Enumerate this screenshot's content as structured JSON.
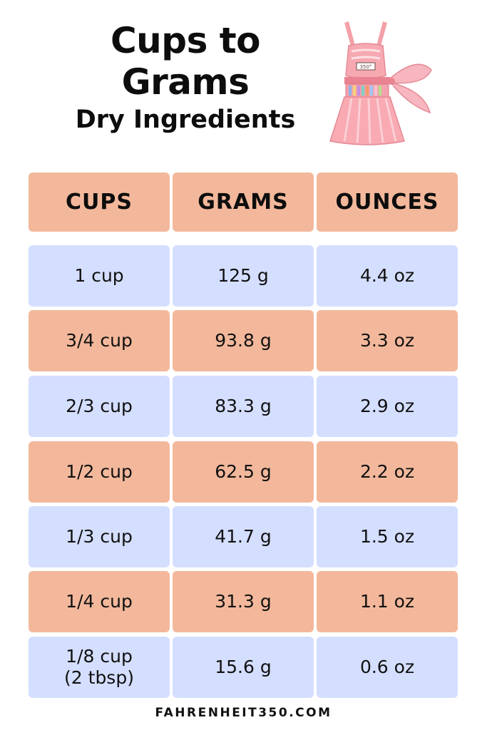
{
  "header": {
    "title_line1": "Cups to",
    "title_line2": "Grams",
    "subtitle": "Dry Ingredients",
    "apron_label": "350°"
  },
  "table": {
    "columns": [
      "CUPS",
      "GRAMS",
      "OUNCES"
    ],
    "rows": [
      {
        "cups": "1 cup",
        "cups_note": "",
        "grams": "125 g",
        "ounces": "4.4 oz"
      },
      {
        "cups": "3/4 cup",
        "cups_note": "",
        "grams": "93.8 g",
        "ounces": "3.3 oz"
      },
      {
        "cups": "2/3 cup",
        "cups_note": "",
        "grams": "83.3 g",
        "ounces": "2.9 oz"
      },
      {
        "cups": "1/2 cup",
        "cups_note": "",
        "grams": "62.5 g",
        "ounces": "2.2 oz"
      },
      {
        "cups": "1/3 cup",
        "cups_note": "",
        "grams": "41.7 g",
        "ounces": "1.5 oz"
      },
      {
        "cups": "1/4 cup",
        "cups_note": "",
        "grams": "31.3 g",
        "ounces": "1.1 oz"
      },
      {
        "cups": "1/8 cup",
        "cups_note": "(2 tbsp)",
        "grams": "15.6 g",
        "ounces": "0.6 oz"
      }
    ]
  },
  "colors": {
    "header_fill": "#f3b89b",
    "blue_row": "#d4deff",
    "orange_row": "#f3b89b"
  },
  "footer": {
    "site": "FAHRENHEIT350.COM"
  }
}
